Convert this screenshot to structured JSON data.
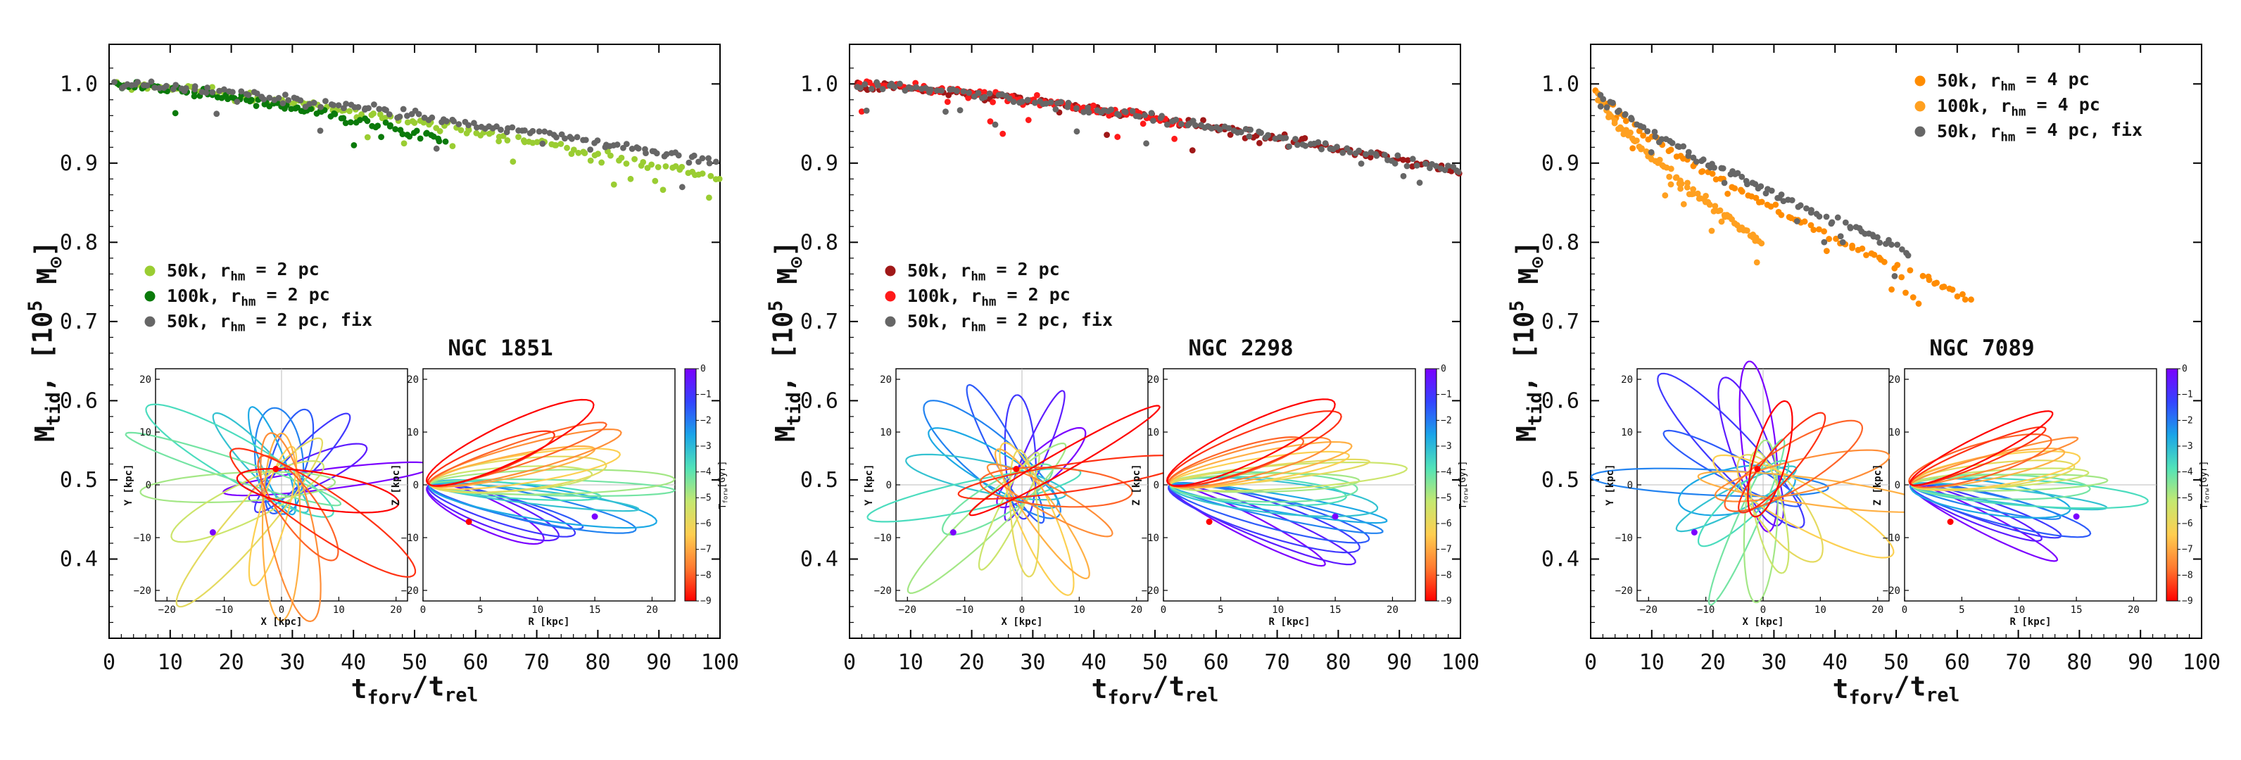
{
  "colorbar": {
    "label": "T_{forw}[Gyr]",
    "ticks": [
      "0",
      "−1",
      "−2",
      "−3",
      "−4",
      "−5",
      "−6",
      "−7",
      "−8",
      "−9"
    ],
    "stops": [
      "#7b00ff",
      "#3344ff",
      "#1aa5e8",
      "#52e3b8",
      "#c5e870",
      "#ffce50",
      "#ff7a30",
      "#ff0000"
    ]
  },
  "chart_data": [
    {
      "type": "scatter",
      "xlabel": "t_{forv}/t_{rel}",
      "ylabel": "M_{tid}, [10^5 M_⊙]",
      "xlim": [
        0,
        100
      ],
      "ylim": [
        0.3,
        1.05
      ],
      "xticks": [
        0,
        10,
        20,
        30,
        40,
        50,
        60,
        70,
        80,
        90,
        100
      ],
      "yticks": [
        0.4,
        0.5,
        0.6,
        0.7,
        0.8,
        0.9,
        1.0
      ],
      "legend": "middle-left",
      "series": [
        {
          "name": "50k, r_{hm} = 2 pc",
          "color": "#9acd32",
          "x_end": 100,
          "y_end": 0.88
        },
        {
          "name": "100k, r_{hm} = 2 pc",
          "color": "#0a7a0a",
          "x_end": 55,
          "y_end": 0.93
        },
        {
          "name": "50k, r_{hm} = 2 pc, fix",
          "color": "#666666",
          "x_end": 100,
          "y_end": 0.9
        }
      ],
      "inset_title": "NGC 1851",
      "inset": {
        "left": {
          "xlabel": "X [kpc]",
          "ylabel": "Y [kpc]",
          "xticks": [
            -20,
            -10,
            0,
            10,
            20
          ],
          "yticks": [
            -20,
            -10,
            0,
            10,
            20
          ]
        },
        "right": {
          "xlabel": "R [kpc]",
          "ylabel": "Z [kpc]",
          "xticks": [
            0,
            5,
            10,
            15,
            20
          ],
          "yticks": [
            -20,
            -10,
            0,
            10,
            20
          ]
        }
      }
    },
    {
      "type": "scatter",
      "xlabel": "t_{forv}/t_{rel}",
      "ylabel": "M_{tid}, [10^5 M_⊙]",
      "xlim": [
        0,
        100
      ],
      "ylim": [
        0.3,
        1.05
      ],
      "xticks": [
        0,
        10,
        20,
        30,
        40,
        50,
        60,
        70,
        80,
        90,
        100
      ],
      "yticks": [
        0.4,
        0.5,
        0.6,
        0.7,
        0.8,
        0.9,
        1.0
      ],
      "legend": "middle-left",
      "series": [
        {
          "name": "50k, r_{hm} = 2 pc",
          "color": "#a01818",
          "x_end": 100,
          "y_end": 0.89
        },
        {
          "name": "100k, r_{hm} = 2 pc",
          "color": "#ff1a1a",
          "x_end": 55,
          "y_end": 0.95
        },
        {
          "name": "50k, r_{hm} = 2 pc, fix",
          "color": "#666666",
          "x_end": 100,
          "y_end": 0.89
        }
      ],
      "inset_title": "NGC 2298",
      "inset": {
        "left": {
          "xlabel": "X [kpc]",
          "ylabel": "Y [kpc]",
          "xticks": [
            -20,
            -10,
            0,
            10,
            20
          ],
          "yticks": [
            -20,
            -10,
            0,
            10,
            20
          ]
        },
        "right": {
          "xlabel": "R [kpc]",
          "ylabel": "Z [kpc]",
          "xticks": [
            0,
            5,
            10,
            15,
            20
          ],
          "yticks": [
            -20,
            -10,
            0,
            10,
            20
          ]
        }
      }
    },
    {
      "type": "scatter",
      "xlabel": "t_{forv}/t_{rel}",
      "ylabel": "M_{tid}, [10^5 M_⊙]",
      "xlim": [
        0,
        100
      ],
      "ylim": [
        0.3,
        1.05
      ],
      "xticks": [
        0,
        10,
        20,
        30,
        40,
        50,
        60,
        70,
        80,
        90,
        100
      ],
      "yticks": [
        0.4,
        0.5,
        0.6,
        0.7,
        0.8,
        0.9,
        1.0
      ],
      "legend": "top-right",
      "series": [
        {
          "name": "50k, r_{hm} = 4 pc",
          "color": "#ff8c00",
          "x_end": 62,
          "y_end": 0.73
        },
        {
          "name": "100k, r_{hm} = 4 pc",
          "color": "#ffa020",
          "x_end": 28,
          "y_end": 0.8
        },
        {
          "name": "50k, r_{hm} = 4 pc, fix",
          "color": "#666666",
          "x_end": 52,
          "y_end": 0.79
        }
      ],
      "inset_title": "NGC 7089",
      "inset": {
        "left": {
          "xlabel": "X [kpc]",
          "ylabel": "Y [kpc]",
          "xticks": [
            -20,
            -10,
            0,
            10,
            20
          ],
          "yticks": [
            -20,
            -10,
            0,
            10,
            20
          ]
        },
        "right": {
          "xlabel": "R [kpc]",
          "ylabel": "Z [kpc]",
          "xticks": [
            0,
            5,
            10,
            15,
            20
          ],
          "yticks": [
            -20,
            -10,
            0,
            10,
            20
          ]
        }
      }
    }
  ]
}
